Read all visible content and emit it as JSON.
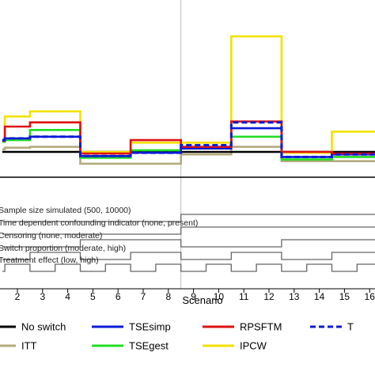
{
  "chart_data": {
    "type": "line",
    "xlabel": "Scenario",
    "x_ticks": [
      "2",
      "3",
      "4",
      "5",
      "6",
      "7",
      "8",
      "9",
      "10",
      "11",
      "12",
      "13",
      "14",
      "15",
      "16"
    ],
    "x_range": [
      1.4,
      16.6
    ],
    "y_range": [
      -0.15,
      2.1
    ],
    "reference_value": 0,
    "reference_x": 8.5,
    "series": [
      {
        "name": "No switch",
        "color": "#000000",
        "style": "solid",
        "values": [
          0.3,
          0.3,
          0.3,
          0.3,
          0.3,
          0.3,
          0.3,
          0.3,
          0.3,
          0.3,
          0.3,
          0.3,
          0.3,
          0.3,
          0.3,
          0.3
        ]
      },
      {
        "name": "ITT",
        "color": "#b5aa7e",
        "style": "solid",
        "values": [
          0.33,
          0.35,
          0.36,
          0.36,
          0.16,
          0.16,
          0.16,
          0.16,
          0.27,
          0.27,
          0.36,
          0.36,
          0.19,
          0.19,
          0.19,
          0.19
        ]
      },
      {
        "name": "TSEsimp",
        "color": "#0b1bd6",
        "style": "solid",
        "values": [
          0.44,
          0.46,
          0.48,
          0.48,
          0.25,
          0.25,
          0.29,
          0.29,
          0.34,
          0.34,
          0.58,
          0.58,
          0.24,
          0.24,
          0.27,
          0.27
        ]
      },
      {
        "name": "TSEgest",
        "color": "#22dd22",
        "style": "solid",
        "values": [
          0.42,
          0.44,
          0.56,
          0.56,
          0.23,
          0.23,
          0.32,
          0.32,
          0.35,
          0.35,
          0.48,
          0.48,
          0.21,
          0.21,
          0.24,
          0.24
        ]
      },
      {
        "name": "RPSFTM",
        "color": "#dd1111",
        "style": "solid",
        "values": [
          0.43,
          0.6,
          0.65,
          0.65,
          0.28,
          0.28,
          0.44,
          0.44,
          0.36,
          0.36,
          0.66,
          0.66,
          0.3,
          0.3,
          0.28,
          0.28
        ]
      },
      {
        "name": "IPCW",
        "color": "#f2e200",
        "style": "solid",
        "values": [
          0.43,
          0.72,
          0.78,
          0.78,
          0.3,
          0.3,
          0.41,
          0.41,
          0.41,
          0.41,
          1.67,
          1.67,
          0.29,
          0.29,
          0.54,
          0.54
        ]
      },
      {
        "name": "TSEgest",
        "color": "#0b1bd6",
        "style": "dashed",
        "values": [
          0.44,
          0.46,
          0.48,
          0.48,
          0.25,
          0.25,
          0.29,
          0.29,
          0.38,
          0.38,
          0.65,
          0.65,
          0.24,
          0.24,
          0.27,
          0.27
        ]
      }
    ],
    "indicators": [
      {
        "label": "Sample size simulated (500, 10000)",
        "levels": [
          0,
          0,
          0,
          0,
          0,
          0,
          0,
          0,
          1,
          1,
          1,
          1,
          1,
          1,
          1,
          1
        ]
      },
      {
        "label": "Time dependent confounding indicator (none, present)",
        "levels": [
          0,
          0,
          0,
          0,
          0,
          0,
          0,
          0,
          1,
          1,
          1,
          1,
          1,
          1,
          1,
          1
        ]
      },
      {
        "label": "Censoring (none, moderate)",
        "levels": [
          0,
          0,
          0,
          0,
          1,
          1,
          1,
          1,
          0,
          0,
          0,
          0,
          1,
          1,
          1,
          1
        ]
      },
      {
        "label": "Switch proportion (moderate, high)",
        "levels": [
          0,
          0,
          1,
          1,
          0,
          0,
          1,
          1,
          0,
          0,
          1,
          1,
          0,
          0,
          1,
          1
        ]
      },
      {
        "label": "Treatment effect (low, high)",
        "levels": [
          0,
          1,
          0,
          1,
          0,
          1,
          0,
          1,
          0,
          1,
          0,
          1,
          0,
          1,
          0,
          1
        ]
      }
    ],
    "legend": [
      {
        "name": "No switch",
        "color": "#000000",
        "style": "solid"
      },
      {
        "name": "TSEsimp",
        "color": "#0b1bd6",
        "style": "solid"
      },
      {
        "name": "RPSFTM",
        "color": "#dd1111",
        "style": "solid"
      },
      {
        "name": "T",
        "color": "#0b1bd6",
        "style": "dashed"
      },
      {
        "name": "ITT",
        "color": "#b5aa7e",
        "style": "solid"
      },
      {
        "name": "TSEgest",
        "color": "#22dd22",
        "style": "solid"
      },
      {
        "name": "IPCW",
        "color": "#f2e200",
        "style": "solid"
      }
    ],
    "legend_position": "bottom",
    "grid": false
  }
}
